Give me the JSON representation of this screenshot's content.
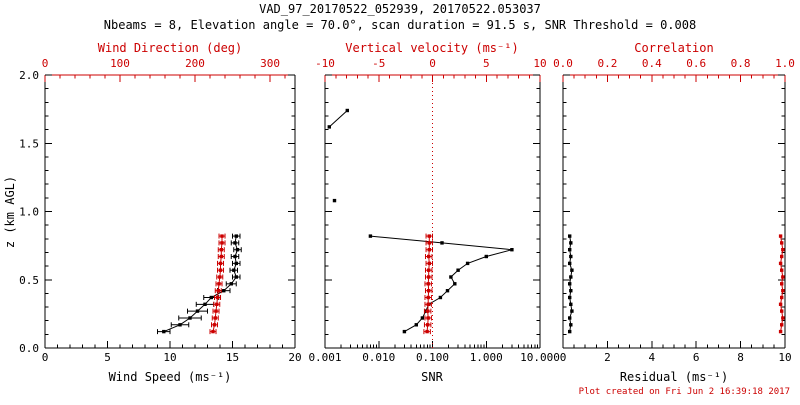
{
  "header": {
    "title": "VAD_97_20170522_052939, 20170522.053037",
    "subtitle": "Nbeams = 8, Elevation angle = 70.0°, scan duration = 91.5 s, SNR Threshold = 0.008"
  },
  "footer": {
    "created": "Plot created on Fri Jun 2 16:39:18 2017"
  },
  "colors": {
    "primary": "#000000",
    "secondary": "#cc0000"
  },
  "ylabel": "z (km AGL)",
  "chart_data": [
    {
      "id": "wind",
      "type": "line",
      "xlabel_bottom": "Wind Speed (ms⁻¹)",
      "xlabel_top": "Wind Direction (deg)",
      "x_bottom": {
        "min": 0,
        "max": 20,
        "scale": "linear",
        "ticks": [
          0,
          5,
          10,
          15,
          20
        ],
        "tick_labels": [
          "0",
          "5",
          "10",
          "15",
          "20"
        ],
        "minor_step": 1
      },
      "x_top": {
        "min": 0,
        "max": 333.3,
        "scale": "linear",
        "ticks": [
          0,
          100,
          200,
          300
        ],
        "tick_labels": [
          "0",
          "100",
          "200",
          "300"
        ],
        "minor_step": 20
      },
      "y": {
        "min": 0,
        "max": 2,
        "ticks": [
          0,
          0.5,
          1,
          1.5,
          2
        ],
        "tick_labels": [
          "0.0",
          "0.5",
          "1.0",
          "1.5",
          "2.0"
        ],
        "minor_step": 0.1
      },
      "series": [
        {
          "name": "wind-speed",
          "axis": "bottom",
          "color": "primary",
          "connect": true,
          "points": [
            [
              9.5,
              0.12
            ],
            [
              10.8,
              0.17
            ],
            [
              11.6,
              0.22
            ],
            [
              12.2,
              0.27
            ],
            [
              12.8,
              0.32
            ],
            [
              13.3,
              0.37
            ],
            [
              14.3,
              0.42
            ],
            [
              14.9,
              0.47
            ],
            [
              15.3,
              0.52
            ],
            [
              15.1,
              0.57
            ],
            [
              15.3,
              0.62
            ],
            [
              15.2,
              0.67
            ],
            [
              15.4,
              0.72
            ],
            [
              15.2,
              0.77
            ],
            [
              15.3,
              0.82
            ]
          ],
          "xerr": [
            0.5,
            0.7,
            0.9,
            0.8,
            0.7,
            0.6,
            0.5,
            0.4,
            0.3,
            0.3,
            0.3,
            0.3,
            0.3,
            0.3,
            0.3
          ]
        },
        {
          "name": "wind-direction",
          "axis": "top",
          "color": "secondary",
          "connect": true,
          "points": [
            [
              224,
              0.12
            ],
            [
              226,
              0.17
            ],
            [
              227,
              0.22
            ],
            [
              228,
              0.27
            ],
            [
              229,
              0.32
            ],
            [
              230,
              0.37
            ],
            [
              231,
              0.42
            ],
            [
              232,
              0.47
            ],
            [
              233,
              0.52
            ],
            [
              234,
              0.57
            ],
            [
              234,
              0.62
            ],
            [
              235,
              0.67
            ],
            [
              235,
              0.72
            ],
            [
              236,
              0.77
            ],
            [
              236,
              0.82
            ]
          ],
          "xerr": 4
        }
      ]
    },
    {
      "id": "snr",
      "type": "line",
      "xlabel_bottom": "SNR",
      "xlabel_top": "Vertical velocity (ms⁻¹)",
      "x_bottom": {
        "min": 0.001,
        "max": 10,
        "scale": "log",
        "ticks": [
          0.001,
          0.01,
          0.1,
          1,
          10
        ],
        "tick_labels": [
          "0.001",
          "0.010",
          "0.100",
          "1.000",
          "10.000"
        ]
      },
      "x_top": {
        "min": -10,
        "max": 10,
        "scale": "linear",
        "ticks": [
          -10,
          -5,
          0,
          5,
          10
        ],
        "tick_labels": [
          "-10",
          "-5",
          "0",
          "5",
          "10"
        ],
        "minor_step": 1
      },
      "y": {
        "min": 0,
        "max": 2,
        "ticks": [
          0,
          0.5,
          1,
          1.5,
          2
        ],
        "tick_labels": [
          "0.0",
          "0.5",
          "1.0",
          "1.5",
          "2.0"
        ],
        "minor_step": 0.1
      },
      "refline": {
        "axis": "top",
        "value": 0
      },
      "series": [
        {
          "name": "snr-profile",
          "axis": "bottom",
          "color": "primary",
          "connect": true,
          "points": [
            [
              0.03,
              0.12
            ],
            [
              0.05,
              0.17
            ],
            [
              0.065,
              0.22
            ],
            [
              0.075,
              0.27
            ],
            [
              0.085,
              0.32
            ],
            [
              0.14,
              0.37
            ],
            [
              0.19,
              0.42
            ],
            [
              0.26,
              0.47
            ],
            [
              0.22,
              0.52
            ],
            [
              0.3,
              0.57
            ],
            [
              0.45,
              0.62
            ],
            [
              1.0,
              0.67
            ],
            [
              3.0,
              0.72
            ],
            [
              0.15,
              0.77
            ],
            [
              0.007,
              0.82
            ]
          ]
        },
        {
          "name": "snr-upper",
          "axis": "bottom",
          "color": "primary",
          "connect": true,
          "points": [
            [
              0.0012,
              1.62
            ],
            [
              0.0026,
              1.74
            ]
          ]
        },
        {
          "name": "snr-isolated",
          "axis": "bottom",
          "color": "primary",
          "connect": false,
          "points": [
            [
              0.0015,
              1.08
            ]
          ]
        },
        {
          "name": "vertical-velocity",
          "axis": "top",
          "color": "secondary",
          "connect": true,
          "points": [
            [
              -0.5,
              0.12
            ],
            [
              -0.45,
              0.17
            ],
            [
              -0.4,
              0.22
            ],
            [
              -0.45,
              0.27
            ],
            [
              -0.4,
              0.32
            ],
            [
              -0.4,
              0.37
            ],
            [
              -0.35,
              0.42
            ],
            [
              -0.4,
              0.47
            ],
            [
              -0.35,
              0.52
            ],
            [
              -0.35,
              0.57
            ],
            [
              -0.3,
              0.62
            ],
            [
              -0.35,
              0.67
            ],
            [
              -0.3,
              0.72
            ],
            [
              -0.3,
              0.77
            ],
            [
              -0.3,
              0.82
            ]
          ],
          "xerr": 0.3
        }
      ]
    },
    {
      "id": "residual",
      "type": "line",
      "xlabel_bottom": "Residual (ms⁻¹)",
      "xlabel_top": "Correlation",
      "x_bottom": {
        "min": 0,
        "max": 10,
        "scale": "linear",
        "ticks": [
          0,
          2,
          4,
          6,
          8,
          10
        ],
        "tick_labels": [
          "0",
          "2",
          "4",
          "6",
          "8",
          "10"
        ],
        "minor_step": 0.5
      },
      "x_top": {
        "min": 0,
        "max": 1,
        "scale": "linear",
        "ticks": [
          0,
          0.2,
          0.4,
          0.6,
          0.8,
          1.0
        ],
        "tick_labels": [
          "0.0",
          "0.2",
          "0.4",
          "0.6",
          "0.8",
          "1.0"
        ],
        "minor_step": 0.05
      },
      "y": {
        "min": 0,
        "max": 2,
        "ticks": [
          0,
          0.5,
          1,
          1.5,
          2
        ],
        "tick_labels": [
          "0.0",
          "0.5",
          "1.0",
          "1.5",
          "2.0"
        ],
        "minor_step": 0.1
      },
      "series": [
        {
          "name": "residual",
          "axis": "bottom",
          "color": "primary",
          "connect": true,
          "points": [
            [
              0.3,
              0.12
            ],
            [
              0.35,
              0.17
            ],
            [
              0.3,
              0.22
            ],
            [
              0.4,
              0.27
            ],
            [
              0.35,
              0.32
            ],
            [
              0.3,
              0.37
            ],
            [
              0.35,
              0.42
            ],
            [
              0.3,
              0.47
            ],
            [
              0.35,
              0.52
            ],
            [
              0.4,
              0.57
            ],
            [
              0.3,
              0.62
            ],
            [
              0.35,
              0.67
            ],
            [
              0.3,
              0.72
            ],
            [
              0.35,
              0.77
            ],
            [
              0.3,
              0.82
            ]
          ]
        },
        {
          "name": "correlation",
          "axis": "top",
          "color": "secondary",
          "connect": true,
          "points": [
            [
              0.98,
              0.12
            ],
            [
              0.985,
              0.17
            ],
            [
              0.99,
              0.22
            ],
            [
              0.985,
              0.27
            ],
            [
              0.98,
              0.32
            ],
            [
              0.985,
              0.37
            ],
            [
              0.99,
              0.42
            ],
            [
              0.985,
              0.47
            ],
            [
              0.99,
              0.52
            ],
            [
              0.985,
              0.57
            ],
            [
              0.98,
              0.62
            ],
            [
              0.985,
              0.67
            ],
            [
              0.99,
              0.72
            ],
            [
              0.985,
              0.77
            ],
            [
              0.98,
              0.82
            ]
          ]
        }
      ]
    }
  ]
}
